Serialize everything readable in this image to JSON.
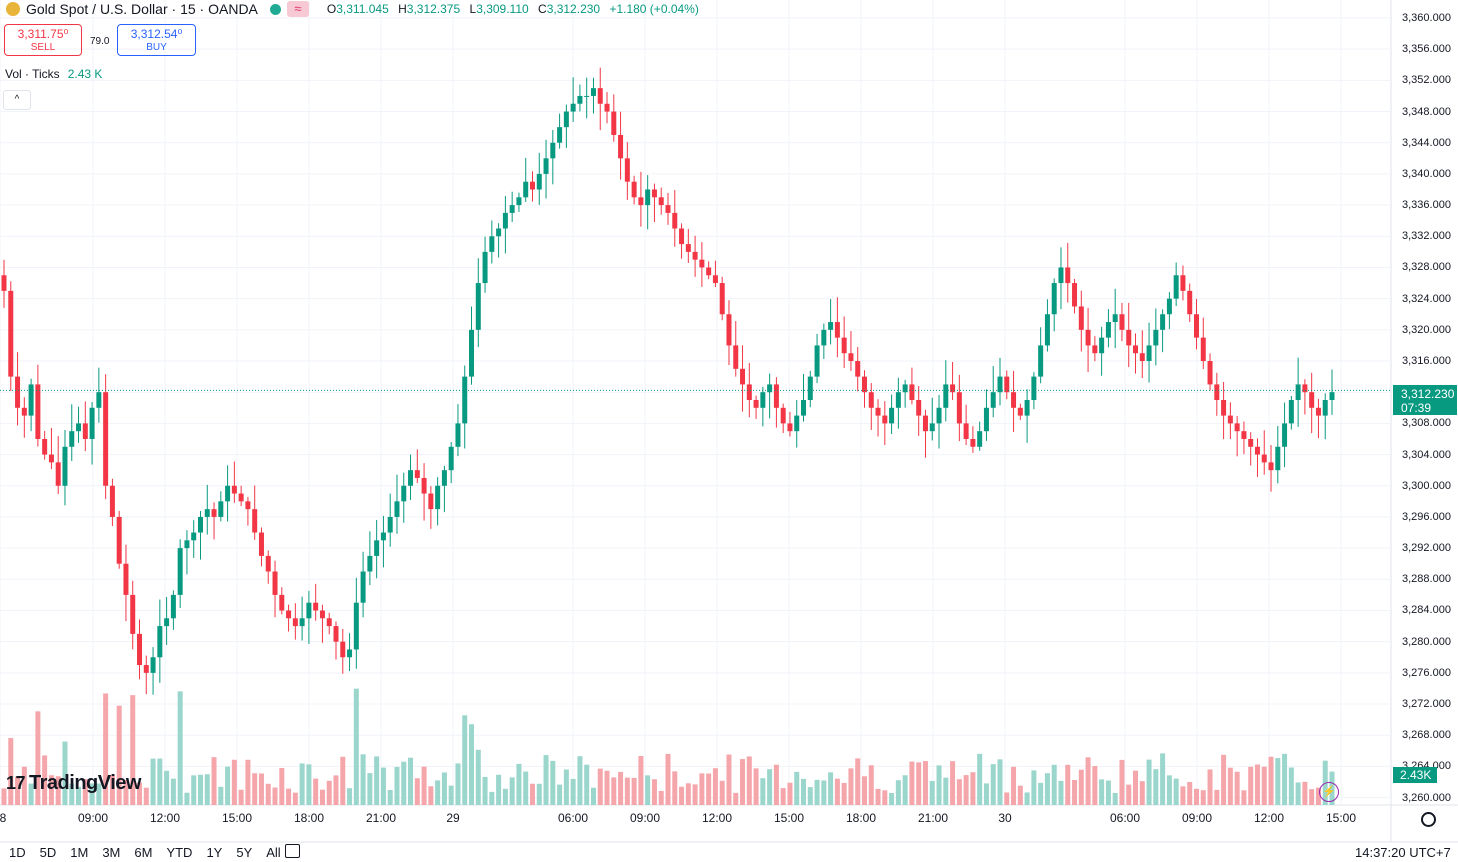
{
  "header": {
    "symbol": "Gold Spot",
    "quote": "U.S. Dollar",
    "interval": "15",
    "exchange": "OANDA",
    "eq_badge": "≈",
    "open_label": "O",
    "open": "3,311.045",
    "high_label": "H",
    "high": "3,312.375",
    "low_label": "L",
    "low": "3,309.110",
    "close_label": "C",
    "close": "3,312.230",
    "change": "+1.180 (+0.04%)"
  },
  "trade": {
    "sell_price": "3,311.75⁰",
    "sell_label": "SELL",
    "spread": "79.0",
    "buy_price": "3,312.54⁰",
    "buy_label": "BUY"
  },
  "volume_legend": {
    "label": "Vol · Ticks",
    "value": "2.43 K"
  },
  "collapse_glyph": "^",
  "logo_text": "TradingView",
  "price_axis": {
    "ticks": [
      "3,360.000",
      "3,356.000",
      "3,352.000",
      "3,348.000",
      "3,344.000",
      "3,340.000",
      "3,336.000",
      "3,332.000",
      "3,328.000",
      "3,324.000",
      "3,320.000",
      "3,316.000",
      "3,312.000",
      "3,308.000",
      "3,304.000",
      "3,300.000",
      "3,296.000",
      "3,292.000",
      "3,288.000",
      "3,284.000",
      "3,280.000",
      "3,276.000",
      "3,272.000",
      "3,268.000",
      "3,264.000",
      "3,260.000"
    ],
    "tick_values": [
      3360,
      3356,
      3352,
      3348,
      3344,
      3340,
      3336,
      3332,
      3328,
      3324,
      3320,
      3316,
      3312,
      3308,
      3304,
      3300,
      3296,
      3292,
      3288,
      3284,
      3280,
      3276,
      3272,
      3268,
      3264,
      3260
    ],
    "last_price": "3,312.230",
    "countdown": "07:39",
    "volume_tag": "2.43K"
  },
  "time_axis": {
    "labels": [
      "8",
      "09:00",
      "12:00",
      "15:00",
      "18:00",
      "21:00",
      "29",
      "06:00",
      "09:00",
      "12:00",
      "15:00",
      "18:00",
      "21:00",
      "30",
      "06:00",
      "09:00",
      "12:00",
      "15:00"
    ]
  },
  "bottom_bar": {
    "ranges": [
      "1D",
      "5D",
      "1M",
      "3M",
      "6M",
      "YTD",
      "1Y",
      "5Y",
      "All"
    ],
    "clock": "14:37:20 UTC+7"
  },
  "colors": {
    "up": "#089981",
    "down": "#f23645",
    "up_vol": "#9ad6cc",
    "down_vol": "#f5a6ab",
    "grid": "#f0f3fa"
  },
  "chart_data": {
    "type": "candlestick",
    "title": "Gold Spot / U.S. Dollar · 15 · OANDA",
    "ylim": [
      3259,
      3361
    ],
    "last": 3312.23,
    "closes": [
      3325,
      3314,
      3310,
      3309,
      3313,
      3306,
      3304,
      3303,
      3300,
      3305,
      3307,
      3308,
      3306,
      3310,
      3312,
      3300,
      3296,
      3290,
      3286,
      3281,
      3277,
      3276,
      3278,
      3282,
      3283,
      3286,
      3292,
      3293,
      3294,
      3296,
      3297,
      3296,
      3298,
      3300,
      3299,
      3298,
      3297,
      3294,
      3291,
      3289,
      3286,
      3284,
      3283,
      3282,
      3283,
      3285,
      3284,
      3283,
      3282,
      3280,
      3278,
      3279,
      3285,
      3289,
      3291,
      3293,
      3294,
      3296,
      3298,
      3300,
      3302,
      3301,
      3299,
      3297,
      3300,
      3302,
      3305,
      3308,
      3314,
      3320,
      3326,
      3330,
      3332,
      3333,
      3335,
      3336,
      3337,
      3339,
      3338,
      3340,
      3342,
      3344,
      3346,
      3348,
      3349,
      3350,
      3350,
      3351,
      3349,
      3348,
      3345,
      3342,
      3339,
      3337,
      3336,
      3338,
      3337,
      3336,
      3335,
      3333,
      3331,
      3330,
      3329,
      3328,
      3327,
      3326,
      3322,
      3318,
      3315,
      3313,
      3311,
      3310,
      3312,
      3313,
      3310,
      3308,
      3307,
      3309,
      3311,
      3314,
      3318,
      3320,
      3321,
      3319,
      3317,
      3316,
      3314,
      3312,
      3310,
      3309,
      3308,
      3310,
      3312,
      3313,
      3311,
      3309,
      3307,
      3308,
      3310,
      3313,
      3312,
      3308,
      3306,
      3305,
      3307,
      3310,
      3312,
      3314,
      3312,
      3310,
      3309,
      3311,
      3314,
      3318,
      3322,
      3326,
      3328,
      3326,
      3323,
      3320,
      3318,
      3317,
      3319,
      3321,
      3322,
      3320,
      3318,
      3317,
      3316,
      3318,
      3320,
      3322,
      3324,
      3327,
      3325,
      3322,
      3319,
      3316,
      3313,
      3311,
      3309,
      3308,
      3307,
      3306,
      3305,
      3304,
      3303,
      3302,
      3305,
      3308,
      3311,
      3313,
      3312,
      3310,
      3309,
      3311,
      3312
    ]
  }
}
